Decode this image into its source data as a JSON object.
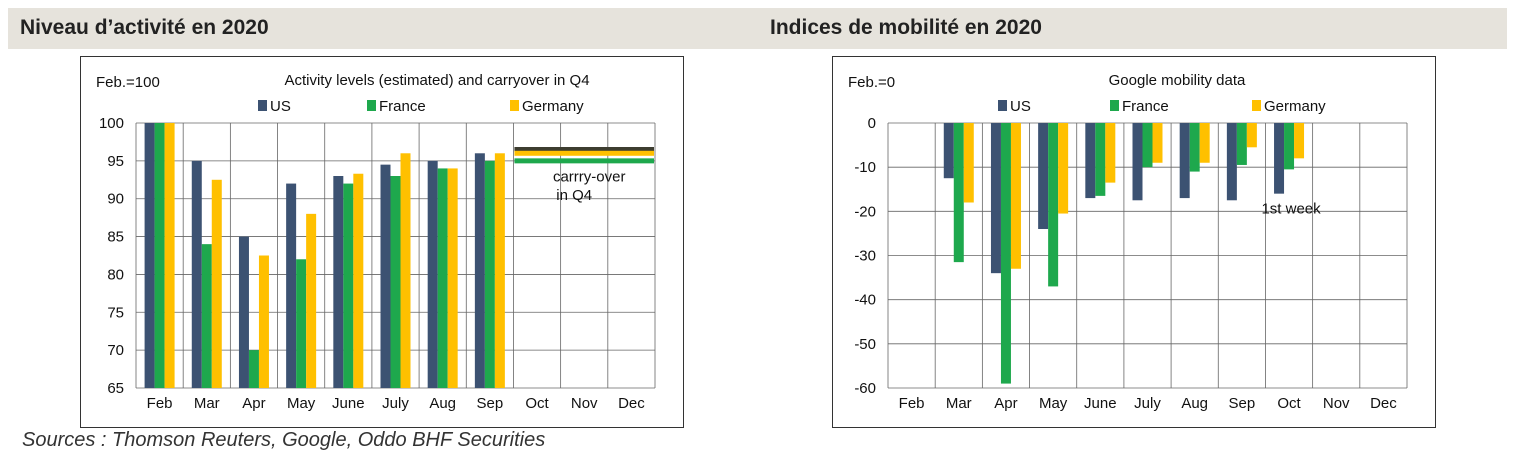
{
  "header": {
    "left_title": "Niveau d’activité en 2020",
    "right_title": "Indices de mobilité en 2020"
  },
  "sources": "Sources : Thomson Reuters, Google, Oddo BHF Securities",
  "colors": {
    "US": "#3c5272",
    "France": "#1ea84d",
    "Germany": "#ffc000",
    "carryover_dark": "#3d3d30"
  },
  "chart_data": [
    {
      "type": "bar",
      "title": "Activity levels (estimated) and carryover in Q4",
      "unit_label": "Feb.=100",
      "categories": [
        "Feb",
        "Mar",
        "Apr",
        "May",
        "June",
        "July",
        "Aug",
        "Sep",
        "Oct",
        "Nov",
        "Dec"
      ],
      "ylim": [
        65,
        100
      ],
      "yticks": [
        100,
        95,
        90,
        85,
        80,
        75,
        70,
        65
      ],
      "grid": true,
      "legend_position": "top",
      "series": [
        {
          "name": "US",
          "values": [
            100,
            95,
            85,
            92,
            93,
            94.5,
            95,
            96,
            null,
            null,
            null
          ]
        },
        {
          "name": "France",
          "values": [
            100,
            84,
            70,
            82,
            92,
            93,
            94,
            95,
            null,
            null,
            null
          ]
        },
        {
          "name": "Germany",
          "values": [
            100,
            92.5,
            82.5,
            88,
            93.3,
            96,
            94,
            96,
            null,
            null,
            null
          ]
        }
      ],
      "carryover": {
        "label_line1": "carrry-over",
        "label_line2": "in Q4",
        "levels": [
          96.5,
          96,
          95
        ]
      }
    },
    {
      "type": "bar",
      "title": "Google mobility data",
      "unit_label": "Feb.=0",
      "categories": [
        "Feb",
        "Mar",
        "Apr",
        "May",
        "June",
        "July",
        "Aug",
        "Sep",
        "Oct",
        "Nov",
        "Dec"
      ],
      "ylim": [
        -60,
        0
      ],
      "yticks": [
        0,
        -10,
        -20,
        -30,
        -40,
        -50,
        -60
      ],
      "grid": true,
      "legend_position": "top",
      "series": [
        {
          "name": "US",
          "values": [
            null,
            -12.5,
            -34,
            -24,
            -17,
            -17.5,
            -17,
            -17.5,
            -16,
            null,
            null
          ]
        },
        {
          "name": "France",
          "values": [
            null,
            -31.5,
            -59,
            -37,
            -16.5,
            -10,
            -11,
            -9.5,
            -10.5,
            null,
            null
          ]
        },
        {
          "name": "Germany",
          "values": [
            null,
            -18,
            -33,
            -20.5,
            -13.5,
            -9,
            -9,
            -5.5,
            -8,
            null,
            null
          ]
        }
      ],
      "annotation": "1st week"
    }
  ]
}
